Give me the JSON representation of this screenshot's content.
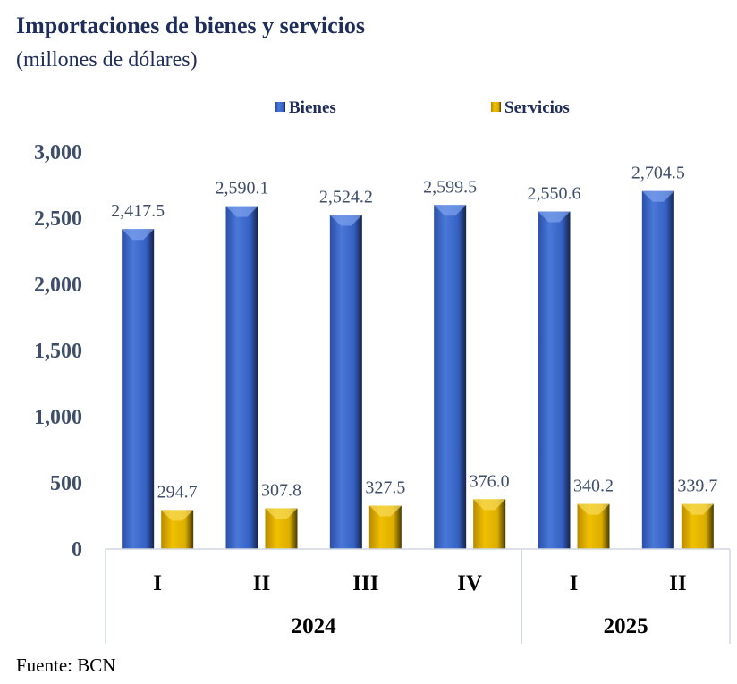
{
  "title": "Importaciones de bienes y servicios",
  "subtitle": "(millones de dólares)",
  "source": "Fuente: BCN",
  "colors": {
    "bienes": "#3a65c4",
    "servicios": "#e0b000",
    "text": "#3f4f6b"
  },
  "chart_data": {
    "type": "bar",
    "title": "Importaciones de bienes y servicios",
    "ylabel": "millones de dólares",
    "xlabel": "",
    "ylim": [
      0,
      3000
    ],
    "yticks": [
      "0",
      "500",
      "1,000",
      "1,500",
      "2,000",
      "2,500",
      "3,000"
    ],
    "ytick_values": [
      0,
      500,
      1000,
      1500,
      2000,
      2500,
      3000
    ],
    "categories": [
      "I",
      "II",
      "III",
      "IV",
      "I",
      "II"
    ],
    "groups": [
      {
        "label": "2024",
        "count": 4
      },
      {
        "label": "2025",
        "count": 2
      }
    ],
    "legend_position": "top",
    "series": [
      {
        "name": "Bienes",
        "values": [
          2417.5,
          2590.1,
          2524.2,
          2599.5,
          2550.6,
          2704.5
        ],
        "labels": [
          "2,417.5",
          "2,590.1",
          "2,524.2",
          "2,599.5",
          "2,550.6",
          "2,704.5"
        ]
      },
      {
        "name": "Servicios",
        "values": [
          294.7,
          307.8,
          327.5,
          376.0,
          340.2,
          339.7
        ],
        "labels": [
          "294.7",
          "307.8",
          "327.5",
          "376.0",
          "340.2",
          "339.7"
        ]
      }
    ]
  }
}
